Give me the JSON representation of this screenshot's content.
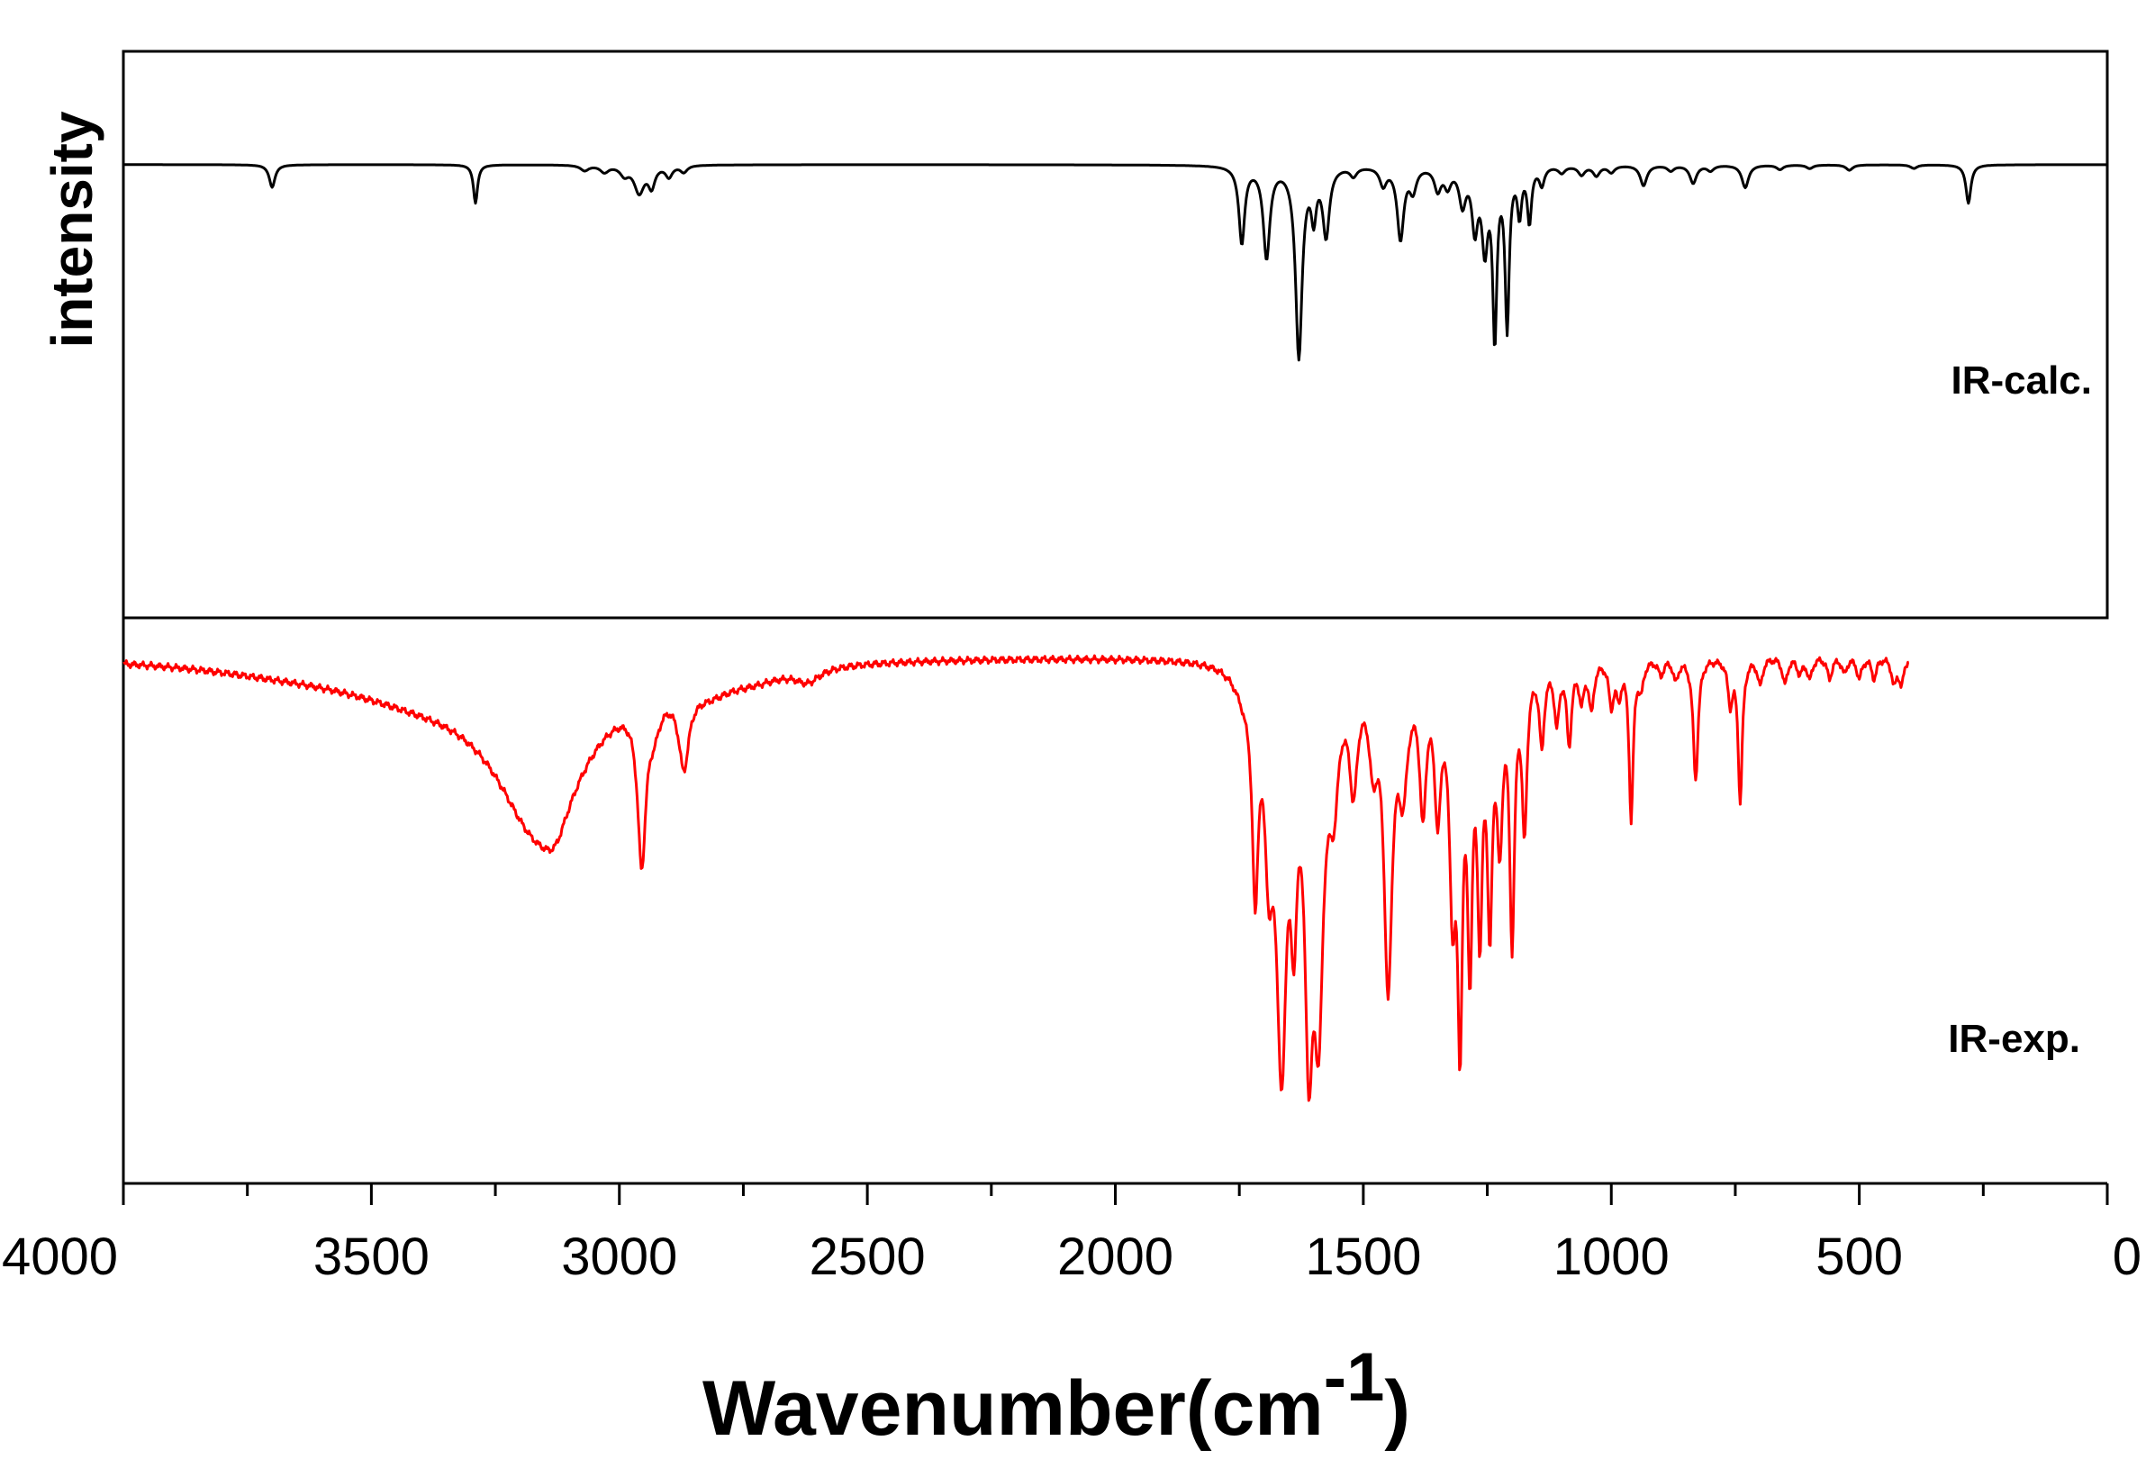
{
  "chart_data": {
    "type": "line",
    "title": "",
    "ylabel": "intensity",
    "xlabel_main": "Wavenumber(cm",
    "xlabel_sup": "-1",
    "xlabel_close": ")",
    "xlim": [
      4000,
      0
    ],
    "xticks": [
      4000,
      3500,
      3000,
      2500,
      2000,
      1500,
      1000,
      500,
      0
    ],
    "xtick_labels": [
      "4000",
      "3500",
      "3000",
      "2500",
      "2000",
      "1500",
      "1000",
      "500",
      "0"
    ],
    "grid": false,
    "panels": [
      {
        "name": "calc",
        "label": "IR-calc.",
        "color": "#000000",
        "ylim": [
          0,
          1.25
        ],
        "baseline": 1.0,
        "x_range": [
          4000,
          0
        ],
        "peaks": [
          [
            3700,
            0.05,
            7
          ],
          [
            3290,
            0.085,
            5
          ],
          [
            3070,
            0.012,
            10
          ],
          [
            3030,
            0.015,
            10
          ],
          [
            2990,
            0.02,
            10
          ],
          [
            2960,
            0.06,
            12
          ],
          [
            2935,
            0.045,
            8
          ],
          [
            2900,
            0.025,
            8
          ],
          [
            2870,
            0.015,
            8
          ],
          [
            1745,
            0.17,
            7
          ],
          [
            1695,
            0.2,
            8
          ],
          [
            1630,
            0.42,
            8
          ],
          [
            1600,
            0.1,
            6
          ],
          [
            1575,
            0.15,
            8
          ],
          [
            1520,
            0.02,
            8
          ],
          [
            1460,
            0.04,
            8
          ],
          [
            1425,
            0.16,
            8
          ],
          [
            1400,
            0.05,
            8
          ],
          [
            1350,
            0.05,
            8
          ],
          [
            1330,
            0.04,
            8
          ],
          [
            1300,
            0.08,
            8
          ],
          [
            1275,
            0.13,
            7
          ],
          [
            1255,
            0.17,
            7
          ],
          [
            1235,
            0.37,
            5
          ],
          [
            1210,
            0.35,
            5
          ],
          [
            1185,
            0.1,
            5
          ],
          [
            1165,
            0.12,
            5
          ],
          [
            1140,
            0.04,
            6
          ],
          [
            1100,
            0.015,
            8
          ],
          [
            1060,
            0.02,
            8
          ],
          [
            1030,
            0.022,
            8
          ],
          [
            1000,
            0.015,
            8
          ],
          [
            935,
            0.045,
            8
          ],
          [
            880,
            0.012,
            8
          ],
          [
            835,
            0.04,
            8
          ],
          [
            800,
            0.012,
            8
          ],
          [
            730,
            0.05,
            8
          ],
          [
            660,
            0.01,
            8
          ],
          [
            600,
            0.008,
            8
          ],
          [
            520,
            0.012,
            8
          ],
          [
            390,
            0.008,
            8
          ],
          [
            280,
            0.085,
            6
          ]
        ]
      },
      {
        "name": "exp",
        "label": "IR-exp.",
        "color": "#ff0000",
        "ylim": [
          0,
          1.07
        ],
        "baseline": 1.0,
        "x_range": [
          4000,
          400
        ],
        "peaks": [
          [
            3160,
            0.3,
            110
          ],
          [
            3130,
            0.05,
            30
          ],
          [
            3400,
            0.06,
            250
          ],
          [
            3700,
            0.01,
            200
          ],
          [
            2955,
            0.3,
            10
          ],
          [
            2930,
            0.05,
            15
          ],
          [
            2870,
            0.14,
            12
          ],
          [
            2820,
            0.03,
            60
          ],
          [
            2620,
            0.025,
            30
          ],
          [
            2730,
            0.02,
            80
          ],
          [
            1740,
            0.04,
            25
          ],
          [
            1718,
            0.38,
            7
          ],
          [
            1690,
            0.3,
            10
          ],
          [
            1665,
            0.7,
            12
          ],
          [
            1640,
            0.35,
            8
          ],
          [
            1610,
            0.6,
            10
          ],
          [
            1590,
            0.58,
            12
          ],
          [
            1560,
            0.2,
            12
          ],
          [
            1520,
            0.2,
            10
          ],
          [
            1480,
            0.15,
            10
          ],
          [
            1450,
            0.58,
            10
          ],
          [
            1420,
            0.2,
            12
          ],
          [
            1380,
            0.25,
            8
          ],
          [
            1350,
            0.25,
            8
          ],
          [
            1320,
            0.4,
            8
          ],
          [
            1305,
            0.62,
            6
          ],
          [
            1285,
            0.5,
            6
          ],
          [
            1265,
            0.45,
            6
          ],
          [
            1245,
            0.45,
            6
          ],
          [
            1225,
            0.3,
            7
          ],
          [
            1200,
            0.5,
            6
          ],
          [
            1175,
            0.3,
            6
          ],
          [
            1140,
            0.15,
            6
          ],
          [
            1110,
            0.11,
            6
          ],
          [
            1085,
            0.15,
            6
          ],
          [
            1060,
            0.07,
            6
          ],
          [
            1040,
            0.09,
            6
          ],
          [
            1000,
            0.08,
            6
          ],
          [
            985,
            0.06,
            6
          ],
          [
            960,
            0.3,
            5
          ],
          [
            940,
            0.05,
            6
          ],
          [
            900,
            0.03,
            6
          ],
          [
            870,
            0.04,
            6
          ],
          [
            830,
            0.23,
            6
          ],
          [
            760,
            0.08,
            6
          ],
          [
            740,
            0.27,
            5
          ],
          [
            700,
            0.05,
            6
          ],
          [
            650,
            0.05,
            6
          ],
          [
            620,
            0.03,
            6
          ],
          [
            600,
            0.04,
            6
          ],
          [
            560,
            0.04,
            6
          ],
          [
            530,
            0.03,
            6
          ],
          [
            500,
            0.04,
            6
          ],
          [
            470,
            0.04,
            6
          ],
          [
            430,
            0.05,
            6
          ],
          [
            415,
            0.05,
            6
          ]
        ]
      }
    ]
  }
}
